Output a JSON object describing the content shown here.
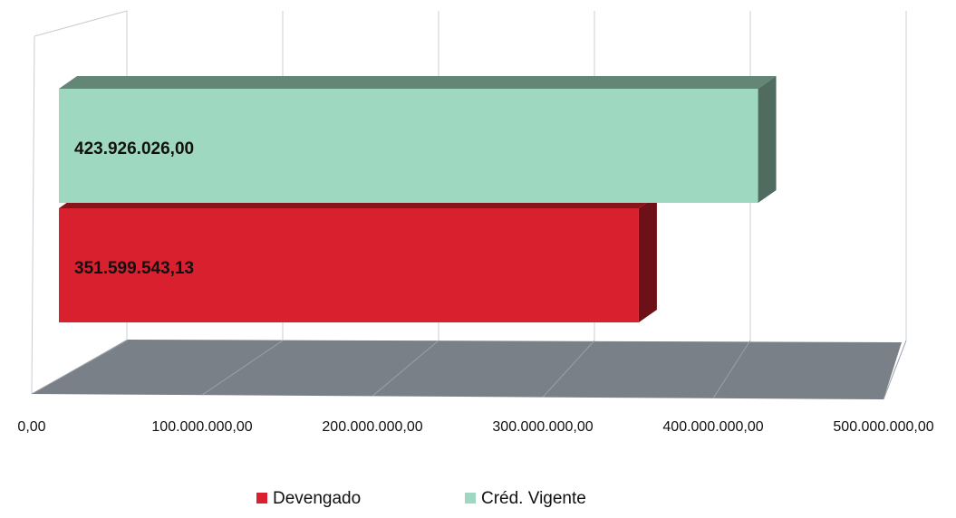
{
  "chart_data": {
    "type": "bar",
    "orientation": "horizontal",
    "categories": [
      null
    ],
    "series": [
      {
        "name": "Devengado",
        "color": "#d9202e",
        "values": [
          351599543.13
        ],
        "value_labels": [
          "351.599.543,13"
        ]
      },
      {
        "name": "Créd. Vigente",
        "color": "#9fd8c0",
        "values": [
          423926026.0
        ],
        "value_labels": [
          "423.926.026,00"
        ]
      }
    ],
    "xlim": [
      0,
      500000000
    ],
    "xticks": [
      {
        "value": 0,
        "label": "0,00"
      },
      {
        "value": 100000000,
        "label": "100.000.000,00"
      },
      {
        "value": 200000000,
        "label": "200.000.000,00"
      },
      {
        "value": 300000000,
        "label": "300.000.000,00"
      },
      {
        "value": 400000000,
        "label": "400.000.000,00"
      },
      {
        "value": 500000000,
        "label": "500.000.000,00"
      }
    ],
    "grid": true,
    "legend": "bottom"
  }
}
